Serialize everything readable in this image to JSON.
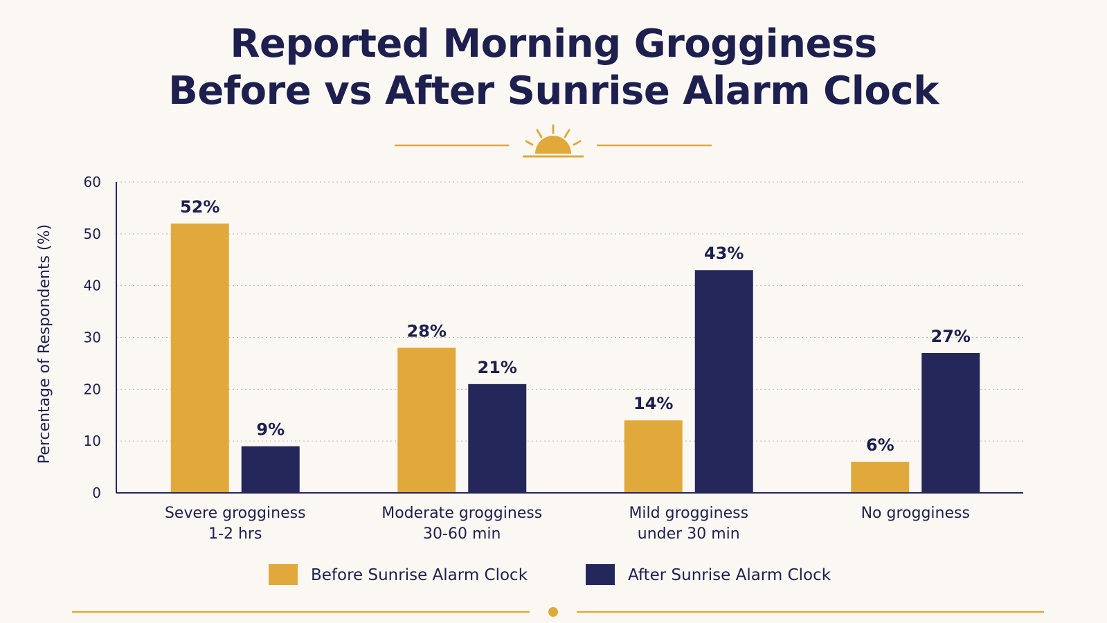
{
  "chart_data": {
    "type": "bar",
    "title_lines": [
      "Reported Morning Grogginess",
      "Before vs After Sunrise Alarm Clock"
    ],
    "ylabel": "Percentage of Respondents (%)",
    "xlabel": "",
    "ylim": [
      0,
      60
    ],
    "yticks": [
      0,
      10,
      20,
      30,
      40,
      50,
      60
    ],
    "grid": true,
    "legend_position": "bottom",
    "categories": [
      [
        "Severe grogginess",
        "1-2 hrs"
      ],
      [
        "Moderate grogginess",
        "30-60 min"
      ],
      [
        "Mild grogginess",
        "under 30 min"
      ],
      [
        "No grogginess"
      ]
    ],
    "series": [
      {
        "name": "Before Sunrise Alarm Clock",
        "color": "#e1a93b",
        "values": [
          52,
          28,
          14,
          6
        ],
        "labels": [
          "52%",
          "28%",
          "14%",
          "6%"
        ]
      },
      {
        "name": "After Sunrise Alarm Clock",
        "color": "#25275a",
        "values": [
          9,
          21,
          43,
          27
        ],
        "labels": [
          "9%",
          "21%",
          "43%",
          "27%"
        ]
      }
    ]
  },
  "colors": {
    "accent": "#e1a93b",
    "navy": "#25275a",
    "text": "#1d1f4e",
    "background": "#fbf8f3"
  },
  "icons": {
    "sun": "sunrise-icon",
    "dot": "dot-icon"
  }
}
